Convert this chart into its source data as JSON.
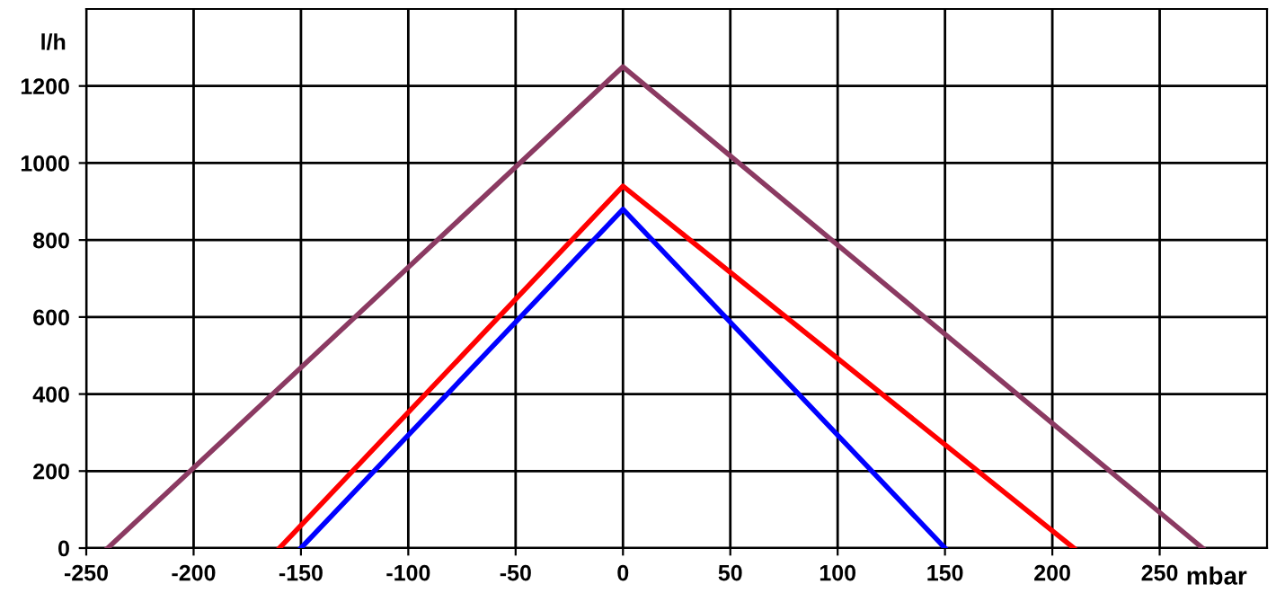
{
  "chart_data": {
    "type": "line",
    "xlabel": "mbar",
    "ylabel": "l/h",
    "xlim": [
      -250,
      300
    ],
    "ylim": [
      0,
      1400
    ],
    "xticks": [
      -250,
      -200,
      -150,
      -100,
      -50,
      0,
      50,
      100,
      150,
      200,
      250
    ],
    "yticks": [
      0,
      200,
      400,
      600,
      800,
      1000,
      1200
    ],
    "grid": true,
    "marker": "none",
    "line_style": "solid",
    "series": [
      {
        "color": "#8b3a62",
        "x": [
          -240,
          0,
          270
        ],
        "values": [
          0,
          1250,
          0
        ]
      },
      {
        "color": "#ff0000",
        "x": [
          -160,
          0,
          210
        ],
        "values": [
          0,
          940,
          0
        ]
      },
      {
        "color": "#0000ff",
        "x": [
          -150,
          0,
          150
        ],
        "values": [
          0,
          880,
          0
        ]
      }
    ]
  }
}
